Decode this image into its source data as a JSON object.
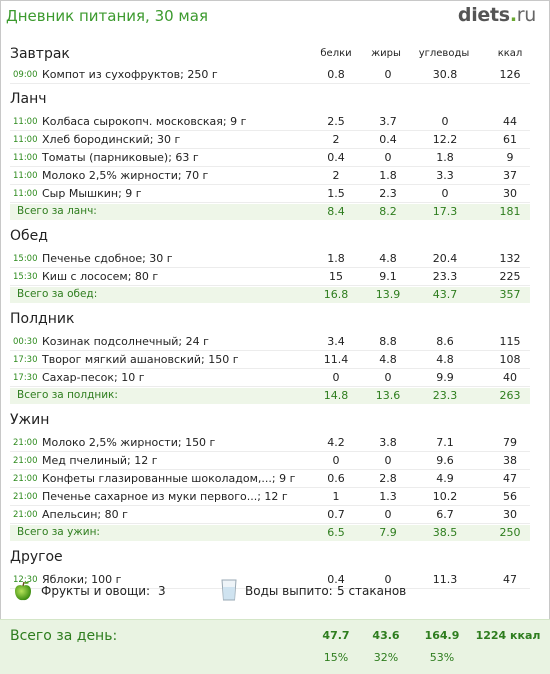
{
  "header": {
    "title": "Дневник питания, 30 мая",
    "logo_main": "diets",
    "logo_dot": ".",
    "logo_tld": "ru"
  },
  "columns": {
    "protein": "белки",
    "fat": "жиры",
    "carbs": "углеводы",
    "kcal": "ккал"
  },
  "sections": [
    {
      "title": "Завтрак",
      "items": [
        {
          "time": "09:00",
          "food": "Компот из сухофруктов; 250 г",
          "protein": "0.8",
          "fat": "0",
          "carbs": "30.8",
          "kcal": "126"
        }
      ]
    },
    {
      "title": "Ланч",
      "items": [
        {
          "time": "11:00",
          "food": "Колбаса сырокопч. московская; 9 г",
          "protein": "2.5",
          "fat": "3.7",
          "carbs": "0",
          "kcal": "44"
        },
        {
          "time": "11:00",
          "food": "Хлеб бородинский; 30 г",
          "protein": "2",
          "fat": "0.4",
          "carbs": "12.2",
          "kcal": "61"
        },
        {
          "time": "11:00",
          "food": "Томаты (парниковые); 63 г",
          "protein": "0.4",
          "fat": "0",
          "carbs": "1.8",
          "kcal": "9"
        },
        {
          "time": "11:00",
          "food": "Молоко 2,5% жирности; 70 г",
          "protein": "2",
          "fat": "1.8",
          "carbs": "3.3",
          "kcal": "37"
        },
        {
          "time": "11:00",
          "food": "Сыр Мышкин; 9 г",
          "protein": "1.5",
          "fat": "2.3",
          "carbs": "0",
          "kcal": "30"
        }
      ],
      "total": {
        "label": "Всего за ланч:",
        "protein": "8.4",
        "fat": "8.2",
        "carbs": "17.3",
        "kcal": "181"
      }
    },
    {
      "title": "Обед",
      "items": [
        {
          "time": "15:00",
          "food": "Печенье сдобное; 30 г",
          "protein": "1.8",
          "fat": "4.8",
          "carbs": "20.4",
          "kcal": "132"
        },
        {
          "time": "15:30",
          "food": "Киш с лососем; 80 г",
          "protein": "15",
          "fat": "9.1",
          "carbs": "23.3",
          "kcal": "225"
        }
      ],
      "total": {
        "label": "Всего за обед:",
        "protein": "16.8",
        "fat": "13.9",
        "carbs": "43.7",
        "kcal": "357"
      }
    },
    {
      "title": "Полдник",
      "items": [
        {
          "time": "00:30",
          "food": "Козинак подсолнечный; 24 г",
          "protein": "3.4",
          "fat": "8.8",
          "carbs": "8.6",
          "kcal": "115"
        },
        {
          "time": "17:30",
          "food": "Творог мягкий ашановский; 150 г",
          "protein": "11.4",
          "fat": "4.8",
          "carbs": "4.8",
          "kcal": "108"
        },
        {
          "time": "17:30",
          "food": "Сахар-песок; 10 г",
          "protein": "0",
          "fat": "0",
          "carbs": "9.9",
          "kcal": "40"
        }
      ],
      "total": {
        "label": "Всего за полдник:",
        "protein": "14.8",
        "fat": "13.6",
        "carbs": "23.3",
        "kcal": "263"
      }
    },
    {
      "title": "Ужин",
      "items": [
        {
          "time": "21:00",
          "food": "Молоко 2,5% жирности; 150 г",
          "protein": "4.2",
          "fat": "3.8",
          "carbs": "7.1",
          "kcal": "79"
        },
        {
          "time": "21:00",
          "food": "Мед пчелиный; 12 г",
          "protein": "0",
          "fat": "0",
          "carbs": "9.6",
          "kcal": "38"
        },
        {
          "time": "21:00",
          "food": "Конфеты глазированные шоколадом,...; 9 г",
          "protein": "0.6",
          "fat": "2.8",
          "carbs": "4.9",
          "kcal": "47"
        },
        {
          "time": "21:00",
          "food": "Печенье сахарное из муки первого...; 12 г",
          "protein": "1",
          "fat": "1.3",
          "carbs": "10.2",
          "kcal": "56"
        },
        {
          "time": "21:00",
          "food": "Апельсин; 80 г",
          "protein": "0.7",
          "fat": "0",
          "carbs": "6.7",
          "kcal": "30"
        }
      ],
      "total": {
        "label": "Всего за ужин:",
        "protein": "6.5",
        "fat": "7.9",
        "carbs": "38.5",
        "kcal": "250"
      }
    },
    {
      "title": "Другое",
      "items": [
        {
          "time": "12:30",
          "food": "Яблоки; 100 г",
          "protein": "0.4",
          "fat": "0",
          "carbs": "11.3",
          "kcal": "47"
        }
      ]
    }
  ],
  "extras": {
    "fruits_icon": "apple-icon",
    "fruits_label": "Фрукты и овощи:",
    "fruits_value": "3",
    "water_icon": "water-glass-icon",
    "water_label": "Воды выпито:",
    "water_value": "5 стаканов"
  },
  "day_total": {
    "label": "Всего за день:",
    "protein": "47.7",
    "fat": "43.6",
    "carbs": "164.9",
    "kcal": "1224 ккал",
    "protein_pct": "15%",
    "fat_pct": "32%",
    "carbs_pct": "53%"
  },
  "colors": {
    "accent_green": "#2e7d1e",
    "title_green": "#3c9a2e",
    "total_bg": "#eef6e8",
    "day_bg": "#e9f3e2"
  }
}
